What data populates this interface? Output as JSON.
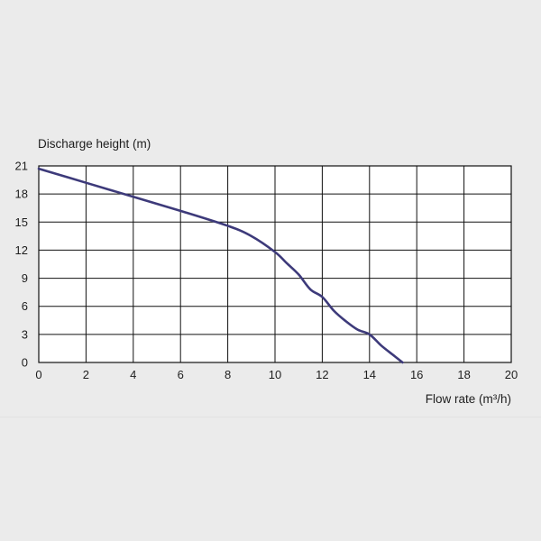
{
  "chart_data": {
    "type": "line",
    "title": "",
    "ylabel": "Discharge height (m)",
    "xlabel": "Flow rate (m³/h)",
    "xlim": [
      0,
      20
    ],
    "ylim": [
      0,
      21
    ],
    "xticks": [
      "0",
      "2",
      "4",
      "6",
      "8",
      "10",
      "12",
      "14",
      "16",
      "18",
      "20"
    ],
    "yticks": [
      "0",
      "3",
      "6",
      "9",
      "12",
      "15",
      "18",
      "21"
    ],
    "grid": true,
    "line_color": "#3d3a7a",
    "series": [
      {
        "x": [
          0,
          2,
          4,
          6,
          8,
          9,
          10,
          10.5,
          11,
          11.5,
          12,
          12.5,
          13,
          13.5,
          14,
          14.5,
          15,
          15.4
        ],
        "y": [
          20.7,
          19.2,
          17.7,
          16.2,
          14.6,
          13.5,
          11.8,
          10.6,
          9.4,
          7.8,
          7.0,
          5.5,
          4.4,
          3.5,
          3.0,
          1.8,
          0.8,
          0
        ]
      }
    ]
  }
}
